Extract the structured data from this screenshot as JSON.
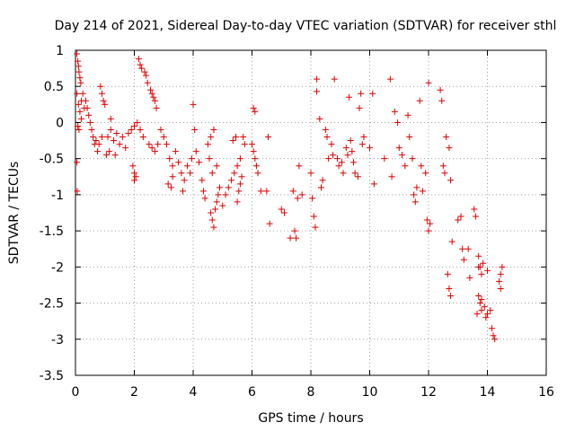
{
  "chart_data": {
    "type": "scatter",
    "title": "Day 214 of 2021, Sidereal Day-to-day VTEC variation (SDTVAR) for receiver sthl",
    "xlabel": "GPS time / hours",
    "ylabel": "SDTVAR / TECUs",
    "xlim": [
      0,
      16
    ],
    "ylim": [
      -3.5,
      1
    ],
    "xticks": [
      0,
      2,
      4,
      6,
      8,
      10,
      12,
      14,
      16
    ],
    "xtick_labels": [
      "0",
      "2",
      "4",
      "6",
      "8",
      "10",
      "12",
      "14",
      "16"
    ],
    "yticks": [
      1,
      0.5,
      0,
      -0.5,
      -1,
      -1.5,
      -2,
      -2.5,
      -3,
      -3.5
    ],
    "ytick_labels": [
      "1",
      "0.5",
      "0",
      "-0.5",
      "-1",
      "-1.5",
      "-2",
      "-2.5",
      "-3",
      "-3.5"
    ],
    "grid": true,
    "marker": "plus",
    "color": "#e00000",
    "series": [
      {
        "name": "SDTVAR",
        "points": [
          [
            0.05,
            0.95
          ],
          [
            0.08,
            0.85
          ],
          [
            0.1,
            0.78
          ],
          [
            0.12,
            0.7
          ],
          [
            0.15,
            0.62
          ],
          [
            0.18,
            0.55
          ],
          [
            0.05,
            0.4
          ],
          [
            0.1,
            0.25
          ],
          [
            0.15,
            0.15
          ],
          [
            0.2,
            0.05
          ],
          [
            0.08,
            -0.05
          ],
          [
            0.12,
            -0.1
          ],
          [
            0.05,
            -0.55
          ],
          [
            0.06,
            -0.95
          ],
          [
            0.2,
            0.3
          ],
          [
            0.25,
            0.4
          ],
          [
            0.3,
            0.2
          ],
          [
            0.35,
            0.3
          ],
          [
            0.4,
            0.2
          ],
          [
            0.45,
            0.1
          ],
          [
            0.5,
            0.0
          ],
          [
            0.55,
            -0.1
          ],
          [
            0.6,
            -0.2
          ],
          [
            0.65,
            -0.3
          ],
          [
            0.7,
            -0.25
          ],
          [
            0.75,
            -0.4
          ],
          [
            0.8,
            -0.3
          ],
          [
            0.85,
            0.5
          ],
          [
            0.9,
            0.4
          ],
          [
            0.95,
            0.3
          ],
          [
            1.0,
            0.25
          ],
          [
            1.05,
            -0.45
          ],
          [
            0.9,
            -0.2
          ],
          [
            1.1,
            -0.2
          ],
          [
            1.2,
            -0.1
          ],
          [
            1.3,
            -0.25
          ],
          [
            1.4,
            -0.15
          ],
          [
            1.5,
            -0.3
          ],
          [
            1.6,
            -0.2
          ],
          [
            1.7,
            -0.35
          ],
          [
            1.2,
            0.05
          ],
          [
            1.15,
            -0.4
          ],
          [
            1.35,
            -0.45
          ],
          [
            1.8,
            -0.15
          ],
          [
            1.9,
            -0.1
          ],
          [
            2.0,
            -0.05
          ],
          [
            2.1,
            0.0
          ],
          [
            2.2,
            -0.1
          ],
          [
            2.3,
            -0.2
          ],
          [
            1.95,
            -0.6
          ],
          [
            2.0,
            -0.7
          ],
          [
            2.05,
            -0.75
          ],
          [
            2.0,
            -0.8
          ],
          [
            2.15,
            0.88
          ],
          [
            2.2,
            0.8
          ],
          [
            2.25,
            0.75
          ],
          [
            2.35,
            0.7
          ],
          [
            2.4,
            0.65
          ],
          [
            2.45,
            0.55
          ],
          [
            2.55,
            0.45
          ],
          [
            2.6,
            0.4
          ],
          [
            2.65,
            0.35
          ],
          [
            2.7,
            0.3
          ],
          [
            2.75,
            0.2
          ],
          [
            2.5,
            -0.3
          ],
          [
            2.6,
            -0.35
          ],
          [
            2.7,
            -0.4
          ],
          [
            2.8,
            -0.3
          ],
          [
            2.9,
            -0.1
          ],
          [
            3.0,
            -0.2
          ],
          [
            3.1,
            -0.3
          ],
          [
            3.2,
            -0.5
          ],
          [
            3.3,
            -0.6
          ],
          [
            3.4,
            -0.4
          ],
          [
            3.5,
            -0.55
          ],
          [
            3.6,
            -0.7
          ],
          [
            3.7,
            -0.8
          ],
          [
            3.15,
            -0.85
          ],
          [
            3.25,
            -0.9
          ],
          [
            3.3,
            -0.75
          ],
          [
            3.65,
            -0.95
          ],
          [
            3.8,
            -0.6
          ],
          [
            3.9,
            -0.7
          ],
          [
            3.95,
            -0.5
          ],
          [
            4.0,
            0.25
          ],
          [
            4.05,
            -0.1
          ],
          [
            4.1,
            -0.4
          ],
          [
            4.2,
            -0.55
          ],
          [
            4.3,
            -0.8
          ],
          [
            4.35,
            -0.95
          ],
          [
            4.4,
            -1.05
          ],
          [
            4.5,
            -0.3
          ],
          [
            4.6,
            -0.2
          ],
          [
            4.7,
            -0.1
          ],
          [
            4.55,
            -0.5
          ],
          [
            4.65,
            -0.7
          ],
          [
            4.8,
            -0.6
          ],
          [
            4.6,
            -1.25
          ],
          [
            4.65,
            -1.35
          ],
          [
            4.7,
            -1.45
          ],
          [
            4.75,
            -1.2
          ],
          [
            4.8,
            -1.1
          ],
          [
            4.85,
            -1.0
          ],
          [
            4.9,
            -0.9
          ],
          [
            5.0,
            -1.15
          ],
          [
            5.1,
            -1.0
          ],
          [
            5.2,
            -0.9
          ],
          [
            5.3,
            -0.8
          ],
          [
            5.4,
            -0.7
          ],
          [
            5.5,
            -0.6
          ],
          [
            5.6,
            -0.5
          ],
          [
            5.35,
            -0.25
          ],
          [
            5.45,
            -0.2
          ],
          [
            5.5,
            -1.1
          ],
          [
            5.55,
            -0.95
          ],
          [
            5.6,
            -0.85
          ],
          [
            5.65,
            -0.75
          ],
          [
            5.7,
            -0.2
          ],
          [
            5.75,
            -0.3
          ],
          [
            6.05,
            0.2
          ],
          [
            6.1,
            0.15
          ],
          [
            6.0,
            -0.3
          ],
          [
            6.05,
            -0.4
          ],
          [
            6.1,
            -0.5
          ],
          [
            6.15,
            -0.6
          ],
          [
            6.2,
            -0.7
          ],
          [
            6.55,
            -0.2
          ],
          [
            6.6,
            -1.4
          ],
          [
            6.5,
            -0.95
          ],
          [
            7.0,
            -1.2
          ],
          [
            7.1,
            -1.25
          ],
          [
            7.3,
            -1.6
          ],
          [
            7.45,
            -1.5
          ],
          [
            7.5,
            -1.6
          ],
          [
            7.4,
            -0.95
          ],
          [
            7.55,
            -1.05
          ],
          [
            7.6,
            -0.6
          ],
          [
            7.7,
            -1.0
          ],
          [
            8.0,
            -0.7
          ],
          [
            8.05,
            -1.05
          ],
          [
            8.1,
            -1.3
          ],
          [
            8.15,
            -1.45
          ],
          [
            8.2,
            0.6
          ],
          [
            8.2,
            0.43
          ],
          [
            8.3,
            0.05
          ],
          [
            8.35,
            -0.9
          ],
          [
            8.4,
            -0.8
          ],
          [
            8.5,
            -0.1
          ],
          [
            8.55,
            -0.2
          ],
          [
            8.7,
            -0.3
          ],
          [
            8.75,
            -0.45
          ],
          [
            8.8,
            0.6
          ],
          [
            8.9,
            -0.5
          ],
          [
            8.95,
            -0.6
          ],
          [
            9.05,
            -0.55
          ],
          [
            9.1,
            -0.7
          ],
          [
            9.2,
            -0.35
          ],
          [
            9.25,
            -0.45
          ],
          [
            9.3,
            0.35
          ],
          [
            9.4,
            -0.4
          ],
          [
            9.45,
            -0.55
          ],
          [
            9.5,
            -0.7
          ],
          [
            9.6,
            -0.75
          ],
          [
            9.65,
            0.2
          ],
          [
            9.7,
            0.4
          ],
          [
            9.75,
            -0.3
          ],
          [
            9.8,
            -0.2
          ],
          [
            10.0,
            -0.35
          ],
          [
            10.1,
            0.4
          ],
          [
            10.15,
            -0.85
          ],
          [
            10.7,
            0.6
          ],
          [
            10.75,
            -0.75
          ],
          [
            10.85,
            0.15
          ],
          [
            10.95,
            0.0
          ],
          [
            11.0,
            -0.35
          ],
          [
            11.1,
            -0.45
          ],
          [
            11.2,
            -0.6
          ],
          [
            11.3,
            0.1
          ],
          [
            11.35,
            -0.2
          ],
          [
            11.45,
            -0.5
          ],
          [
            11.5,
            -1.0
          ],
          [
            11.55,
            -1.1
          ],
          [
            11.6,
            -0.9
          ],
          [
            11.7,
            0.3
          ],
          [
            11.75,
            -0.6
          ],
          [
            11.8,
            -0.95
          ],
          [
            11.9,
            -0.7
          ],
          [
            12.0,
            0.55
          ],
          [
            11.95,
            -1.35
          ],
          [
            12.0,
            -1.5
          ],
          [
            12.4,
            0.45
          ],
          [
            12.45,
            0.3
          ],
          [
            12.5,
            -0.6
          ],
          [
            12.55,
            -0.7
          ],
          [
            12.6,
            -0.2
          ],
          [
            12.7,
            -0.35
          ],
          [
            12.75,
            -0.8
          ],
          [
            12.65,
            -2.1
          ],
          [
            12.7,
            -2.3
          ],
          [
            12.75,
            -2.4
          ],
          [
            12.8,
            -1.65
          ],
          [
            13.0,
            -1.35
          ],
          [
            13.1,
            -1.3
          ],
          [
            13.15,
            -1.75
          ],
          [
            13.2,
            -1.9
          ],
          [
            13.35,
            -1.75
          ],
          [
            13.4,
            -2.15
          ],
          [
            13.55,
            -1.2
          ],
          [
            13.6,
            -1.3
          ],
          [
            13.7,
            -1.85
          ],
          [
            13.75,
            -2.0
          ],
          [
            13.8,
            -2.1
          ],
          [
            13.85,
            -1.95
          ],
          [
            13.7,
            -2.4
          ],
          [
            13.75,
            -2.5
          ],
          [
            13.8,
            -2.6
          ],
          [
            13.9,
            -2.55
          ],
          [
            13.95,
            -2.7
          ],
          [
            14.0,
            -2.65
          ],
          [
            14.1,
            -2.6
          ],
          [
            14.15,
            -2.85
          ],
          [
            14.2,
            -2.95
          ],
          [
            14.25,
            -3.0
          ],
          [
            14.4,
            -2.2
          ],
          [
            14.45,
            -2.1
          ],
          [
            14.5,
            -2.0
          ],
          [
            14.45,
            -2.3
          ],
          [
            13.65,
            -2.65
          ],
          [
            13.7,
            -2.0
          ],
          [
            13.8,
            -2.45
          ],
          [
            14.0,
            -2.05
          ],
          [
            12.05,
            -1.4
          ],
          [
            10.5,
            -0.5
          ],
          [
            9.35,
            -0.25
          ],
          [
            8.6,
            -0.5
          ],
          [
            6.3,
            -0.95
          ]
        ]
      }
    ]
  }
}
